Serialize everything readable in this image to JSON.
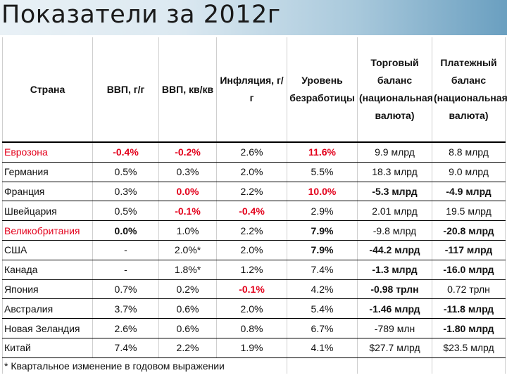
{
  "slide": {
    "title": "Показатели за 2012г"
  },
  "table": {
    "headers": [
      "Страна",
      "ВВП, г/г",
      "ВВП, кв/кв",
      "Инфляция, г/г",
      "Уровень безработицы",
      "Торговый баланс (национальная валюта)",
      "Платежный баланс (национальная валюта)"
    ],
    "rows": [
      {
        "country": "Еврозона",
        "gdp_yy": "-0.4%",
        "gdp_qq": "-0.2%",
        "inflation": "2.6%",
        "unemployment": "11.6%",
        "trade": "9.9 млрд",
        "payments": "8.8 млрд"
      },
      {
        "country": "Германия",
        "gdp_yy": "0.5%",
        "gdp_qq": "0.3%",
        "inflation": "2.0%",
        "unemployment": "5.5%",
        "trade": "18.3 млрд",
        "payments": "9.0 млрд"
      },
      {
        "country": "Франция",
        "gdp_yy": "0.3%",
        "gdp_qq": "0.0%",
        "inflation": "2.2%",
        "unemployment": "10.0%",
        "trade": "-5.3 млрд",
        "payments": "-4.9 млрд"
      },
      {
        "country": "Швейцария",
        "gdp_yy": "0.5%",
        "gdp_qq": "-0.1%",
        "inflation": "-0.4%",
        "unemployment": "2.9%",
        "trade": "2.01 млрд",
        "payments": "19.5 млрд"
      },
      {
        "country": "Великобритания",
        "gdp_yy": "0.0%",
        "gdp_qq": "1.0%",
        "inflation": "2.2%",
        "unemployment": "7.9%",
        "trade": "-9.8 млрд",
        "payments": "-20.8 млрд"
      },
      {
        "country": "США",
        "gdp_yy": "-",
        "gdp_qq": "2.0%*",
        "inflation": "2.0%",
        "unemployment": "7.9%",
        "trade": "-44.2 млрд",
        "payments": "-117 млрд"
      },
      {
        "country": "Канада",
        "gdp_yy": "-",
        "gdp_qq": "1.8%*",
        "inflation": "1.2%",
        "unemployment": "7.4%",
        "trade": "-1.3 млрд",
        "payments": "-16.0 млрд"
      },
      {
        "country": "Япония",
        "gdp_yy": "0.7%",
        "gdp_qq": "0.2%",
        "inflation": "-0.1%",
        "unemployment": "4.2%",
        "trade": "-0.98 трлн",
        "payments": "0.72 трлн"
      },
      {
        "country": "Австралия",
        "gdp_yy": "3.7%",
        "gdp_qq": "0.6%",
        "inflation": "2.0%",
        "unemployment": "5.4%",
        "trade": "-1.46 млрд",
        "payments": "-11.8 млрд"
      },
      {
        "country": "Новая Зеландия",
        "gdp_yy": "2.6%",
        "gdp_qq": "0.6%",
        "inflation": "0.8%",
        "unemployment": "6.7%",
        "trade": "-789 млн",
        "payments": "-1.80 млрд"
      },
      {
        "country": "Китай",
        "gdp_yy": "7.4%",
        "gdp_qq": "2.2%",
        "inflation": "1.9%",
        "unemployment": "4.1%",
        "trade": "$27.7 млрд",
        "payments": "$23.5 млрд"
      }
    ],
    "footnote": "* Квартальное изменение в годовом выражении"
  },
  "colors": {
    "negative_red": "#e3001b",
    "text": "#111111"
  }
}
